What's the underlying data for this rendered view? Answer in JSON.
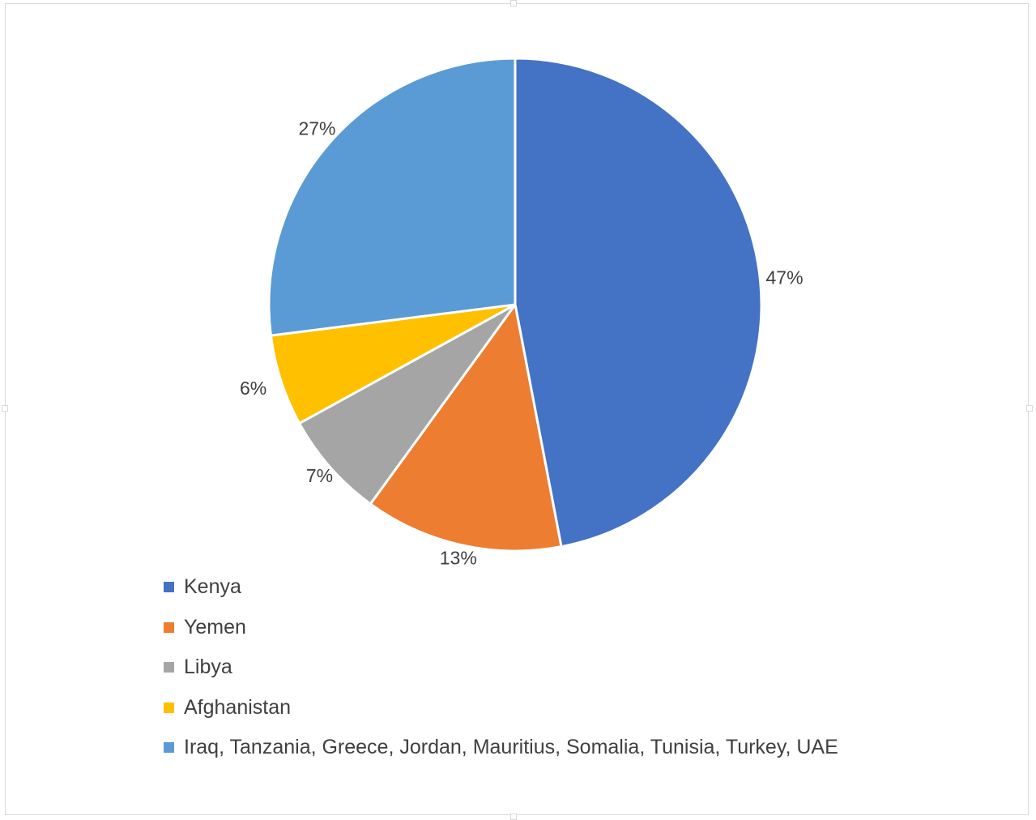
{
  "chart_data": {
    "type": "pie",
    "series": [
      {
        "values": [
          47,
          13,
          7,
          6,
          27
        ],
        "labels": [
          "47%",
          "13%",
          "7%",
          "6%",
          "27%"
        ]
      }
    ],
    "categories": [
      "Kenya",
      "Yemen",
      "Libya",
      "Afghanistan",
      "Iraq, Tanzania, Greece, Jordan, Mauritius, Somalia, Tunisia, Turkey, UAE"
    ],
    "colors": [
      "#4472c4",
      "#ed7d31",
      "#a5a5a5",
      "#ffc000",
      "#5b9bd5"
    ],
    "start_angle_deg": 0,
    "direction": "clockwise",
    "legend_position": "bottom-left"
  }
}
